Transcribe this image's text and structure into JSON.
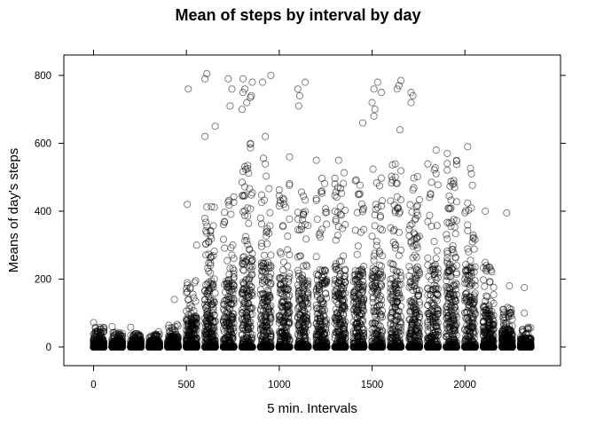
{
  "chart_data": {
    "type": "scatter",
    "title": "Mean of steps by interval by day",
    "xlabel": "5 min. Intervals",
    "ylabel": "Means of day's steps",
    "xlim": [
      -160,
      2515
    ],
    "ylim": [
      -55,
      860
    ],
    "x_ticks": [
      0,
      500,
      1000,
      1500,
      2000
    ],
    "y_ticks": [
      0,
      200,
      400,
      600,
      800
    ],
    "grid": false,
    "legend": "none",
    "marker": "open-circle",
    "marker_color": "#000000",
    "x_extent": [
      0,
      2355
    ],
    "interval_step_minutes": 5,
    "density_profile": [
      {
        "hour": 0,
        "max_typical": 60,
        "peaks": [
          72
        ]
      },
      {
        "hour": 1,
        "max_typical": 45,
        "peaks": [
          60
        ]
      },
      {
        "hour": 2,
        "max_typical": 40,
        "peaks": [
          58
        ]
      },
      {
        "hour": 3,
        "max_typical": 40,
        "peaks": [
          45
        ]
      },
      {
        "hour": 4,
        "max_typical": 70,
        "peaks": [
          140
        ]
      },
      {
        "hour": 5,
        "max_typical": 200,
        "peaks": [
          300,
          420,
          760
        ]
      },
      {
        "hour": 6,
        "max_typical": 420,
        "peaks": [
          790,
          805,
          650,
          620
        ]
      },
      {
        "hour": 7,
        "max_typical": 450,
        "peaks": [
          790,
          760,
          710
        ]
      },
      {
        "hour": 8,
        "max_typical": 600,
        "peaks": [
          790,
          780,
          760,
          750,
          740,
          735,
          720,
          700
        ]
      },
      {
        "hour": 9,
        "max_typical": 560,
        "peaks": [
          800,
          780,
          620
        ]
      },
      {
        "hour": 10,
        "max_typical": 520,
        "peaks": [
          560
        ]
      },
      {
        "hour": 11,
        "max_typical": 470,
        "peaks": [
          780,
          760,
          740,
          710
        ]
      },
      {
        "hour": 12,
        "max_typical": 510,
        "peaks": [
          550
        ]
      },
      {
        "hour": 13,
        "max_typical": 520,
        "peaks": [
          550
        ]
      },
      {
        "hour": 14,
        "max_typical": 510,
        "peaks": [
          660
        ]
      },
      {
        "hour": 15,
        "max_typical": 540,
        "peaks": [
          780,
          760,
          750,
          720,
          700,
          680
        ]
      },
      {
        "hour": 16,
        "max_typical": 540,
        "peaks": [
          785,
          770,
          760,
          640
        ]
      },
      {
        "hour": 17,
        "max_typical": 510,
        "peaks": [
          750,
          740,
          720
        ]
      },
      {
        "hour": 18,
        "max_typical": 550,
        "peaks": [
          580
        ]
      },
      {
        "hour": 19,
        "max_typical": 550,
        "peaks": [
          570
        ]
      },
      {
        "hour": 20,
        "max_typical": 530,
        "peaks": [
          590
        ]
      },
      {
        "hour": 21,
        "max_typical": 280,
        "peaks": [
          400
        ]
      },
      {
        "hour": 22,
        "max_typical": 120,
        "peaks": [
          395,
          180
        ]
      },
      {
        "hour": 23,
        "max_typical": 60,
        "peaks": [
          175,
          100
        ]
      }
    ]
  }
}
